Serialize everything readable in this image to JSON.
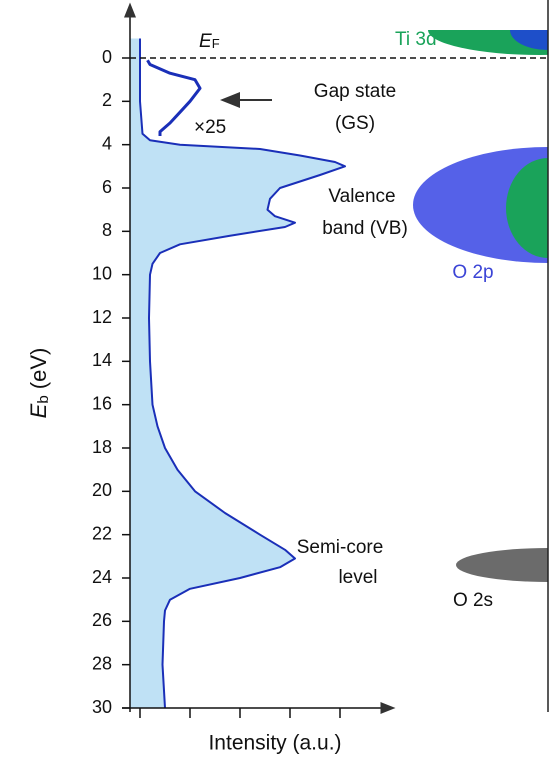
{
  "chart_data": {
    "type": "line",
    "ylabel": {
      "main": "E",
      "sub": "b",
      "rest": "(eV)"
    },
    "xlabel": "Intensity (a.u.)",
    "fermi_label": {
      "main": "E",
      "sub": "F"
    },
    "ylim": [
      30,
      -2.4
    ],
    "yticks": [
      0,
      2,
      4,
      6,
      8,
      10,
      12,
      14,
      16,
      18,
      20,
      22,
      24,
      26,
      28,
      30
    ],
    "xlim": [
      0,
      5
    ],
    "xticks": [
      0.2,
      1.2,
      2.2,
      3.2,
      4.2
    ],
    "series": [
      {
        "color": "#1a2fb8",
        "fill": "#bfe1f5",
        "eb": [
          -0.9,
          0,
          2,
          3.5,
          3.8,
          4.0,
          4.2,
          4.5,
          4.8,
          5.0,
          5.4,
          6.0,
          6.5,
          7.0,
          7.3,
          7.6,
          7.8,
          8.2,
          8.6,
          9.0,
          9.5,
          10,
          12,
          14,
          16,
          17,
          18,
          19,
          20,
          21,
          22,
          22.7,
          23.1,
          23.5,
          24,
          24.5,
          25,
          25.5,
          26,
          28,
          30
        ],
        "values": [
          0.2,
          0.2,
          0.2,
          0.25,
          0.4,
          1.0,
          2.6,
          3.4,
          4.1,
          4.3,
          3.8,
          3.0,
          2.8,
          2.75,
          2.9,
          3.3,
          3.1,
          2.0,
          1.0,
          0.6,
          0.45,
          0.4,
          0.38,
          0.4,
          0.45,
          0.55,
          0.7,
          0.95,
          1.3,
          1.9,
          2.6,
          3.1,
          3.3,
          3.0,
          2.2,
          1.2,
          0.8,
          0.7,
          0.68,
          0.65,
          0.7
        ]
      },
      {
        "color": "#1a2fb8",
        "eb": [
          0.1,
          0.3,
          0.7,
          1.0,
          1.4,
          2.0,
          2.5,
          3.0,
          3.4,
          3.6
        ],
        "values": [
          0.35,
          0.4,
          0.8,
          1.3,
          1.4,
          1.2,
          1.0,
          0.8,
          0.6,
          0.6
        ]
      }
    ],
    "annotations": {
      "gap": [
        "Gap state",
        "(GS)"
      ],
      "scale": "×25",
      "valence": [
        "Valence",
        "band (VB)"
      ],
      "semicore": [
        "Semi-core",
        "level"
      ]
    },
    "bands": {
      "ti3d": "Ti 3d",
      "o2p": "O 2p",
      "o2s": "O 2s"
    }
  }
}
